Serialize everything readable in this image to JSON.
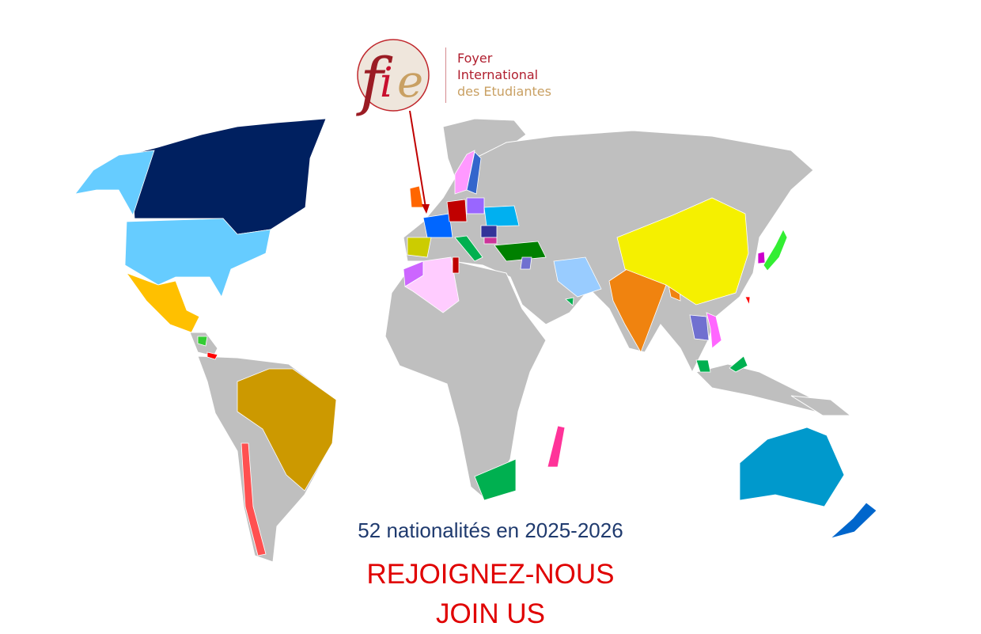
{
  "logo": {
    "monogram": "fie",
    "line1": "Foyer",
    "line2": "International",
    "line3": "des Etudiantes",
    "colors": {
      "red": "#b01e2e",
      "gold": "#c9a063",
      "circle": "#efe6dc"
    }
  },
  "caption": {
    "nationalities": "52 nationalités en 2025-2026",
    "cta_fr": "REJOIGNEZ-NOUS",
    "cta_en": "JOIN US"
  },
  "map": {
    "base_color": "#bfbfbf",
    "pointer": "france",
    "highlighted": [
      {
        "country": "canada",
        "color": "#002060"
      },
      {
        "country": "usa",
        "color": "#66ccff"
      },
      {
        "country": "mexico",
        "color": "#ffc000"
      },
      {
        "country": "brazil",
        "color": "#cc9900"
      },
      {
        "country": "chile",
        "color": "#ff5050"
      },
      {
        "country": "france",
        "color": "#0066ff"
      },
      {
        "country": "spain",
        "color": "#cccc00"
      },
      {
        "country": "algeria",
        "color": "#ffccff"
      },
      {
        "country": "morocco",
        "color": "#cc66ff"
      },
      {
        "country": "tunisia",
        "color": "#c00000"
      },
      {
        "country": "turkey",
        "color": "#008000"
      },
      {
        "country": "ukraine",
        "color": "#00b0f0"
      },
      {
        "country": "norway",
        "color": "#ff99ff"
      },
      {
        "country": "sweden",
        "color": "#3366cc"
      },
      {
        "country": "iran",
        "color": "#99ccff"
      },
      {
        "country": "india",
        "color": "#f0830f"
      },
      {
        "country": "china",
        "color": "#f5f000"
      },
      {
        "country": "japan",
        "color": "#33ee33"
      },
      {
        "country": "south-korea",
        "color": "#cc33ff"
      },
      {
        "country": "vietnam",
        "color": "#ff66ff"
      },
      {
        "country": "thailand",
        "color": "#7070d0"
      },
      {
        "country": "malaysia",
        "color": "#00b050"
      },
      {
        "country": "south-africa",
        "color": "#00b050"
      },
      {
        "country": "madagascar",
        "color": "#ff3399"
      },
      {
        "country": "australia",
        "color": "#0099cc"
      },
      {
        "country": "new-zealand",
        "color": "#0066cc"
      }
    ]
  }
}
